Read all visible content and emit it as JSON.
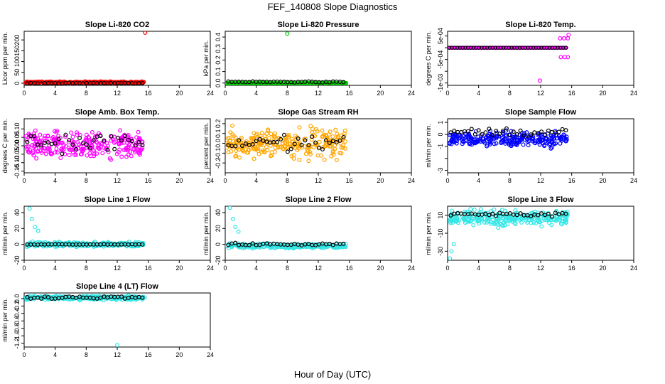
{
  "figure": {
    "title": "FEF_140808  Slope Diagnostics",
    "xlabel": "Hour of Day (UTC)"
  },
  "chart_data": [
    {
      "id": "co2",
      "type": "scatter",
      "title": "Slope Li-820 CO2",
      "ylabel": "Licor ppm per min.",
      "xlim": [
        0,
        24
      ],
      "ylim": [
        -10,
        240
      ],
      "yticks": [
        0,
        50,
        100,
        150,
        200
      ],
      "ytick_labels": [
        "0",
        "50",
        "100",
        "150",
        "200"
      ],
      "xticks": [
        0,
        4,
        8,
        12,
        16,
        20,
        24
      ],
      "color": "#ff0000",
      "scatter_center": 4,
      "scatter_spread": 5,
      "black_center": 0,
      "black_spread": 2,
      "series_note": "dense points 0–15.6 h",
      "outliers": [
        {
          "x": 15.6,
          "y": 234
        }
      ]
    },
    {
      "id": "pressure",
      "type": "scatter",
      "title": "Slope Li-820 Pressure",
      "ylabel": "kPa per min.",
      "xlim": [
        0,
        24
      ],
      "ylim": [
        -0.02,
        0.45
      ],
      "yticks": [
        0.0,
        0.1,
        0.2,
        0.3,
        0.4
      ],
      "ytick_labels": [
        "0.0",
        "0.1",
        "0.2",
        "0.3",
        "0.4"
      ],
      "xticks": [
        0,
        4,
        8,
        12,
        16,
        20,
        24
      ],
      "color": "#00cc00",
      "scatter_center": 0.0,
      "scatter_spread": 0.004,
      "black_center": 0.01,
      "black_spread": 0.006,
      "outliers": [
        {
          "x": 8.0,
          "y": 0.43
        }
      ]
    },
    {
      "id": "temp",
      "type": "scatter",
      "title": "Slope Li-820 Temp.",
      "ylabel": "degrees C per min.",
      "xlim": [
        0,
        24
      ],
      "ylim": [
        -0.0016,
        0.0007
      ],
      "yticks": [
        0.0005,
        0.0,
        -0.0005,
        -0.001,
        -0.0015
      ],
      "ytick_labels": [
        "5e-04",
        "",
        "-5e-04",
        "",
        "-1e-03"
      ],
      "xticks": [
        0,
        4,
        8,
        12,
        16,
        20,
        24
      ],
      "color": "#ff00ff",
      "note": "values quantized at 0",
      "outliers": [
        {
          "x": 14.5,
          "y": 0.0004
        },
        {
          "x": 15.0,
          "y": 0.0004
        },
        {
          "x": 15.5,
          "y": 0.0004
        },
        {
          "x": 15.6,
          "y": 0.00055
        },
        {
          "x": 14.6,
          "y": -0.0004
        },
        {
          "x": 15.1,
          "y": -0.0004
        },
        {
          "x": 15.5,
          "y": -0.0004
        },
        {
          "x": 11.9,
          "y": -0.0014
        }
      ]
    },
    {
      "id": "ambtemp",
      "type": "scatter",
      "title": "Slope Amb. Box Temp.",
      "ylabel": "degrees C per min.",
      "xlim": [
        0,
        24
      ],
      "ylim": [
        -0.16,
        0.16
      ],
      "yticks": [
        -0.15,
        -0.1,
        -0.05,
        0.0,
        0.05,
        0.1
      ],
      "ytick_labels": [
        "-0.15",
        "-0.10",
        "-0.05",
        "0.00",
        "0.05",
        "0.10"
      ],
      "xticks": [
        0,
        4,
        8,
        12,
        16,
        20,
        24
      ],
      "color": "#ff00ff",
      "scatter_center": 0.0,
      "scatter_spread": 0.12,
      "black_center": 0.02,
      "black_spread": 0.08
    },
    {
      "id": "rh",
      "type": "scatter",
      "title": "Slope Gas Stream RH",
      "ylabel": "percent per min.",
      "xlim": [
        0,
        24
      ],
      "ylim": [
        -0.3,
        0.25
      ],
      "yticks": [
        -0.2,
        -0.1,
        0.0,
        0.1,
        0.2
      ],
      "ytick_labels": [
        "-0.2",
        "-0.1",
        "0.0",
        "0.1",
        "0.2"
      ],
      "xticks": [
        0,
        4,
        8,
        12,
        16,
        20,
        24
      ],
      "color": "#ffa500",
      "scatter_center": 0.0,
      "scatter_spread": 0.2,
      "black_center": 0.0,
      "black_spread": 0.12
    },
    {
      "id": "sample",
      "type": "scatter",
      "title": "Slope Sample Flow",
      "ylabel": "ml/min per min.",
      "xlim": [
        0,
        24
      ],
      "ylim": [
        -3.2,
        1.3
      ],
      "yticks": [
        1,
        0,
        -1,
        -2,
        -3
      ],
      "ytick_labels": [
        "1",
        "0",
        "-1",
        "",
        "-3"
      ],
      "xticks": [
        0,
        4,
        8,
        12,
        16,
        20,
        24
      ],
      "color": "#0000ff",
      "scatter_center": -0.4,
      "scatter_spread": 0.9,
      "black_center": 0.2,
      "black_spread": 0.5
    },
    {
      "id": "line1",
      "type": "scatter",
      "title": "Slope Line 1 Flow",
      "ylabel": "ml/min per min.",
      "xlim": [
        0,
        24
      ],
      "ylim": [
        -20,
        48
      ],
      "yticks": [
        -20,
        0,
        20,
        40
      ],
      "ytick_labels": [
        "-20",
        "0",
        "20",
        "40"
      ],
      "xticks": [
        0,
        4,
        8,
        12,
        16,
        20,
        24
      ],
      "color": "#33e6e6",
      "scatter_center": 0,
      "scatter_spread": 4,
      "black_center": 0,
      "black_spread": 0.5,
      "outliers": [
        {
          "x": 0.7,
          "y": 45
        },
        {
          "x": 1.0,
          "y": 32
        },
        {
          "x": 1.4,
          "y": 22
        },
        {
          "x": 1.8,
          "y": 17
        }
      ]
    },
    {
      "id": "line2",
      "type": "scatter",
      "title": "Slope Line 2 Flow",
      "ylabel": "ml/min per min.",
      "xlim": [
        0,
        24
      ],
      "ylim": [
        -20,
        48
      ],
      "yticks": [
        -20,
        0,
        20,
        40
      ],
      "ytick_labels": [
        "-20",
        "0",
        "20",
        "40"
      ],
      "xticks": [
        0,
        4,
        8,
        12,
        16,
        20,
        24
      ],
      "color": "#33e6e6",
      "scatter_center": -2,
      "scatter_spread": 4,
      "black_center": 0,
      "black_spread": 2,
      "outliers": [
        {
          "x": 0.6,
          "y": 46
        },
        {
          "x": 1.0,
          "y": 32
        },
        {
          "x": 1.3,
          "y": 22
        },
        {
          "x": 1.7,
          "y": 16
        }
      ]
    },
    {
      "id": "line3",
      "type": "scatter",
      "title": "Slope Line 3 Flow",
      "ylabel": "ml/min per min.",
      "xlim": [
        0,
        24
      ],
      "ylim": [
        -40,
        20
      ],
      "yticks": [
        10,
        -10,
        -30
      ],
      "ytick_labels": [
        "10",
        "-10",
        "-30"
      ],
      "xticks": [
        0,
        4,
        8,
        12,
        16,
        20,
        24
      ],
      "color": "#33e6e6",
      "scatter_center": 7,
      "scatter_spread": 12,
      "black_center": 11,
      "black_spread": 3,
      "outliers": [
        {
          "x": 0.3,
          "y": -38
        },
        {
          "x": 0.5,
          "y": -30
        },
        {
          "x": 0.8,
          "y": -22
        }
      ]
    },
    {
      "id": "line4",
      "type": "scatter",
      "title": "Slope Line 4 (LT) Flow",
      "ylabel": "ml/min per min.",
      "xlim": [
        0,
        24
      ],
      "ylim": [
        -1.3,
        0.15
      ],
      "yticks": [
        0.0,
        -0.2,
        -0.4,
        -0.6,
        -0.8,
        -1.0,
        -1.2
      ],
      "ytick_labels": [
        "0.0",
        "-0.2",
        "-0.4",
        "-0.6",
        "-0.8",
        "-1.0",
        "-1.2"
      ],
      "xticks": [
        0,
        4,
        8,
        12,
        16,
        20,
        24
      ],
      "color": "#33e6e6",
      "scatter_center": 0.02,
      "scatter_spread": 0.08,
      "black_center": 0.03,
      "black_spread": 0.05,
      "outliers": [
        {
          "x": 12.0,
          "y": -1.25
        }
      ]
    }
  ]
}
